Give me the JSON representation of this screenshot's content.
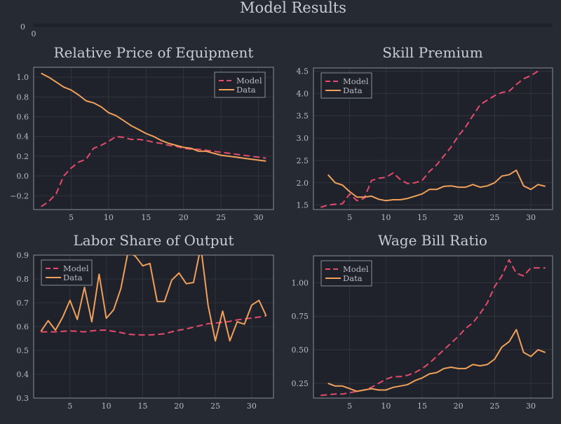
{
  "figure": {
    "title": "Model Results",
    "top_axis": {
      "y_tick": "0",
      "x_tick": "0"
    }
  },
  "colors": {
    "background": "#262a33",
    "plot_bg": "#1f222a",
    "model": "#e64a6c",
    "data": "#f0a05a",
    "frame": "#8a8e98",
    "grid": "#343842"
  },
  "chart_data": [
    {
      "type": "line",
      "title": "Relative Price of Equipment",
      "xlim": [
        0,
        32
      ],
      "ylim": [
        -0.34,
        1.1
      ],
      "xticks": [
        5,
        10,
        15,
        20,
        25,
        30
      ],
      "yticks": [
        -0.2,
        0.0,
        0.2,
        0.4,
        0.6,
        0.8,
        1.0
      ],
      "ytick_labels": [
        "−0.2",
        "0.0",
        "0.2",
        "0.4",
        "0.6",
        "0.8",
        "1.0"
      ],
      "legend": "top-right",
      "series": [
        {
          "name": "Model",
          "style": "dashed",
          "x": [
            1,
            2,
            3,
            4,
            5,
            6,
            7,
            8,
            9,
            10,
            11,
            12,
            13,
            14,
            15,
            16,
            17,
            18,
            19,
            20,
            21,
            22,
            23,
            24,
            25,
            26,
            27,
            28,
            29,
            30,
            31
          ],
          "y": [
            -0.31,
            -0.26,
            -0.18,
            0.0,
            0.08,
            0.14,
            0.17,
            0.28,
            0.31,
            0.35,
            0.4,
            0.39,
            0.37,
            0.37,
            0.36,
            0.34,
            0.33,
            0.31,
            0.3,
            0.28,
            0.27,
            0.27,
            0.26,
            0.25,
            0.24,
            0.23,
            0.22,
            0.21,
            0.2,
            0.19,
            0.18
          ]
        },
        {
          "name": "Data",
          "style": "solid",
          "x": [
            1,
            2,
            3,
            4,
            5,
            6,
            7,
            8,
            9,
            10,
            11,
            12,
            13,
            14,
            15,
            16,
            17,
            18,
            19,
            20,
            21,
            22,
            23,
            24,
            25,
            26,
            27,
            28,
            29,
            30,
            31
          ],
          "y": [
            1.04,
            1.0,
            0.95,
            0.9,
            0.87,
            0.82,
            0.76,
            0.74,
            0.7,
            0.64,
            0.61,
            0.56,
            0.51,
            0.47,
            0.43,
            0.4,
            0.36,
            0.33,
            0.31,
            0.29,
            0.28,
            0.25,
            0.25,
            0.23,
            0.21,
            0.2,
            0.19,
            0.18,
            0.17,
            0.16,
            0.15
          ]
        }
      ]
    },
    {
      "type": "line",
      "title": "Skill Premium",
      "xlim": [
        0,
        33
      ],
      "ylim": [
        1.4,
        4.57
      ],
      "xticks": [
        5,
        10,
        15,
        20,
        25,
        30
      ],
      "yticks": [
        1.5,
        2.0,
        2.5,
        3.0,
        3.5,
        4.0,
        4.5
      ],
      "ytick_labels": [
        "1.5",
        "2.0",
        "2.5",
        "3.0",
        "3.5",
        "4.0",
        "4.5"
      ],
      "legend": "top-left",
      "series": [
        {
          "name": "Model",
          "style": "dashed",
          "x": [
            1,
            2,
            3,
            4,
            5,
            6,
            7,
            8,
            9,
            10,
            11,
            12,
            13,
            14,
            15,
            16,
            17,
            18,
            19,
            20,
            21,
            22,
            23,
            24,
            25,
            26,
            27,
            28,
            29,
            30,
            31
          ],
          "y": [
            1.45,
            1.5,
            1.52,
            1.53,
            1.75,
            1.6,
            1.65,
            2.05,
            2.1,
            2.12,
            2.22,
            2.07,
            1.98,
            2.0,
            2.05,
            2.25,
            2.4,
            2.6,
            2.8,
            3.05,
            3.25,
            3.5,
            3.75,
            3.85,
            3.95,
            4.02,
            4.05,
            4.2,
            4.33,
            4.4,
            4.5
          ]
        },
        {
          "name": "Data",
          "style": "solid",
          "x": [
            2,
            3,
            4,
            5,
            6,
            7,
            8,
            9,
            10,
            11,
            12,
            13,
            14,
            15,
            16,
            17,
            18,
            19,
            20,
            21,
            22,
            23,
            24,
            25,
            26,
            27,
            28,
            29,
            30,
            31,
            32
          ],
          "y": [
            2.18,
            2.0,
            1.95,
            1.8,
            1.68,
            1.68,
            1.7,
            1.63,
            1.6,
            1.62,
            1.62,
            1.65,
            1.7,
            1.75,
            1.85,
            1.85,
            1.92,
            1.93,
            1.9,
            1.9,
            1.96,
            1.9,
            1.93,
            2.0,
            2.15,
            2.18,
            2.28,
            1.93,
            1.85,
            1.96,
            1.92
          ]
        }
      ]
    },
    {
      "type": "line",
      "title": "Labor Share of Output",
      "xlim": [
        0,
        33
      ],
      "ylim": [
        0.3,
        0.9
      ],
      "xticks": [
        5,
        10,
        15,
        20,
        25,
        30
      ],
      "yticks": [
        0.3,
        0.4,
        0.5,
        0.6,
        0.7,
        0.8,
        0.9
      ],
      "ytick_labels": [
        "0.3",
        "0.4",
        "0.5",
        "0.6",
        "0.7",
        "0.8",
        "0.9"
      ],
      "legend": "top-left",
      "series": [
        {
          "name": "Model",
          "style": "dashed",
          "x": [
            1,
            2,
            3,
            4,
            5,
            6,
            7,
            8,
            9,
            10,
            11,
            12,
            13,
            14,
            15,
            16,
            17,
            18,
            19,
            20,
            21,
            22,
            23,
            24,
            25,
            26,
            27,
            28,
            29,
            30,
            31,
            32
          ],
          "y": [
            0.578,
            0.578,
            0.578,
            0.58,
            0.582,
            0.58,
            0.578,
            0.582,
            0.585,
            0.585,
            0.58,
            0.575,
            0.568,
            0.566,
            0.565,
            0.565,
            0.567,
            0.57,
            0.578,
            0.585,
            0.59,
            0.598,
            0.605,
            0.612,
            0.615,
            0.618,
            0.622,
            0.628,
            0.632,
            0.636,
            0.64,
            0.645
          ]
        },
        {
          "name": "Data",
          "style": "solid",
          "x": [
            1,
            2,
            3,
            4,
            5,
            6,
            7,
            8,
            9,
            10,
            11,
            12,
            13,
            14,
            15,
            16,
            17,
            18,
            19,
            20,
            21,
            22,
            23,
            24,
            25,
            26,
            27,
            28,
            29,
            30,
            31,
            32
          ],
          "y": [
            0.58,
            0.625,
            0.585,
            0.64,
            0.71,
            0.63,
            0.765,
            0.62,
            0.82,
            0.635,
            0.67,
            0.76,
            0.915,
            0.895,
            0.855,
            0.865,
            0.705,
            0.705,
            0.795,
            0.825,
            0.78,
            0.785,
            0.935,
            0.69,
            0.54,
            0.665,
            0.54,
            0.62,
            0.61,
            0.69,
            0.71,
            0.645
          ]
        }
      ]
    },
    {
      "type": "line",
      "title": "Wage Bill Ratio",
      "xlim": [
        0,
        33
      ],
      "ylim": [
        0.14,
        1.2
      ],
      "xticks": [
        5,
        10,
        15,
        20,
        25,
        30
      ],
      "yticks": [
        0.25,
        0.5,
        0.75,
        1.0
      ],
      "ytick_labels": [
        "0.25",
        "0.50",
        "0.75",
        "1.00"
      ],
      "legend": "top-left",
      "series": [
        {
          "name": "Model",
          "style": "dashed",
          "x": [
            1,
            2,
            3,
            4,
            5,
            6,
            7,
            8,
            9,
            10,
            11,
            12,
            13,
            14,
            15,
            16,
            17,
            18,
            19,
            20,
            21,
            22,
            23,
            24,
            25,
            26,
            27,
            28,
            29,
            30,
            31,
            32
          ],
          "y": [
            0.16,
            0.165,
            0.17,
            0.17,
            0.18,
            0.19,
            0.2,
            0.22,
            0.25,
            0.28,
            0.3,
            0.3,
            0.31,
            0.33,
            0.36,
            0.4,
            0.45,
            0.5,
            0.55,
            0.6,
            0.66,
            0.7,
            0.77,
            0.85,
            0.97,
            1.05,
            1.17,
            1.07,
            1.05,
            1.11,
            1.11,
            1.11
          ]
        },
        {
          "name": "Data",
          "style": "solid",
          "x": [
            2,
            3,
            4,
            5,
            6,
            7,
            8,
            9,
            10,
            11,
            12,
            13,
            14,
            15,
            16,
            17,
            18,
            19,
            20,
            21,
            22,
            23,
            24,
            25,
            26,
            27,
            28,
            29,
            30,
            31,
            32
          ],
          "y": [
            0.25,
            0.23,
            0.23,
            0.21,
            0.19,
            0.2,
            0.21,
            0.2,
            0.2,
            0.22,
            0.23,
            0.24,
            0.27,
            0.29,
            0.32,
            0.33,
            0.36,
            0.37,
            0.36,
            0.36,
            0.39,
            0.38,
            0.39,
            0.43,
            0.52,
            0.56,
            0.65,
            0.48,
            0.45,
            0.5,
            0.48
          ]
        }
      ]
    }
  ]
}
